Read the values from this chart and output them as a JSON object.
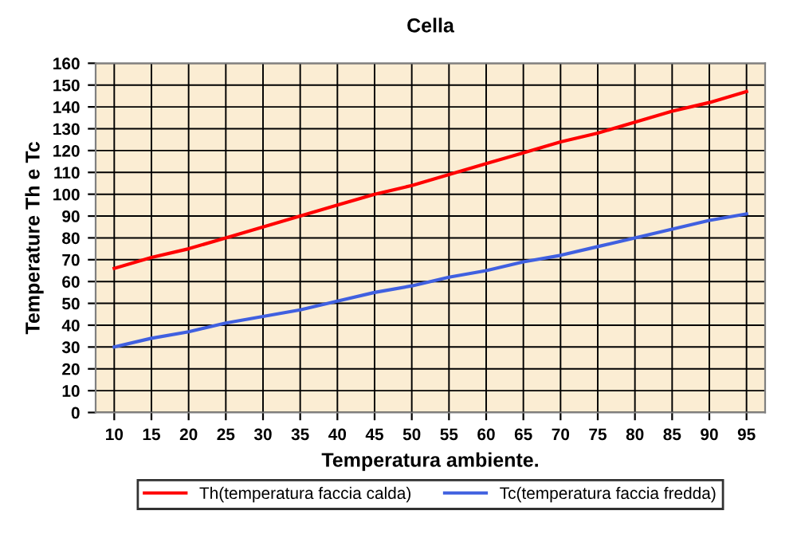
{
  "chart_data": {
    "type": "line",
    "title": "Cella",
    "xlabel": "Temperatura ambiente.",
    "ylabel": "Temperature Th e Tc",
    "categories": [
      "10",
      "15",
      "20",
      "25",
      "30",
      "35",
      "40",
      "45",
      "50",
      "55",
      "60",
      "65",
      "70",
      "75",
      "80",
      "85",
      "90",
      "95"
    ],
    "series": [
      {
        "name": "Th(temperatura faccia calda)",
        "color": "#ff0000",
        "values": [
          66,
          71,
          75,
          80,
          85,
          90,
          95,
          100,
          104,
          109,
          114,
          119,
          124,
          128,
          133,
          138,
          142,
          147
        ]
      },
      {
        "name": "Tc(temperatura faccia fredda)",
        "color": "#4060e0",
        "values": [
          30,
          34,
          37,
          41,
          44,
          47,
          51,
          55,
          58,
          62,
          65,
          69,
          72,
          76,
          80,
          84,
          88,
          91
        ]
      }
    ],
    "ylim": [
      0,
      160
    ],
    "yticks": [
      0,
      10,
      20,
      30,
      40,
      50,
      60,
      70,
      80,
      90,
      100,
      110,
      120,
      130,
      140,
      150,
      160
    ],
    "grid": true,
    "legend": "bottom",
    "marker": "none",
    "line_style": "solid"
  }
}
